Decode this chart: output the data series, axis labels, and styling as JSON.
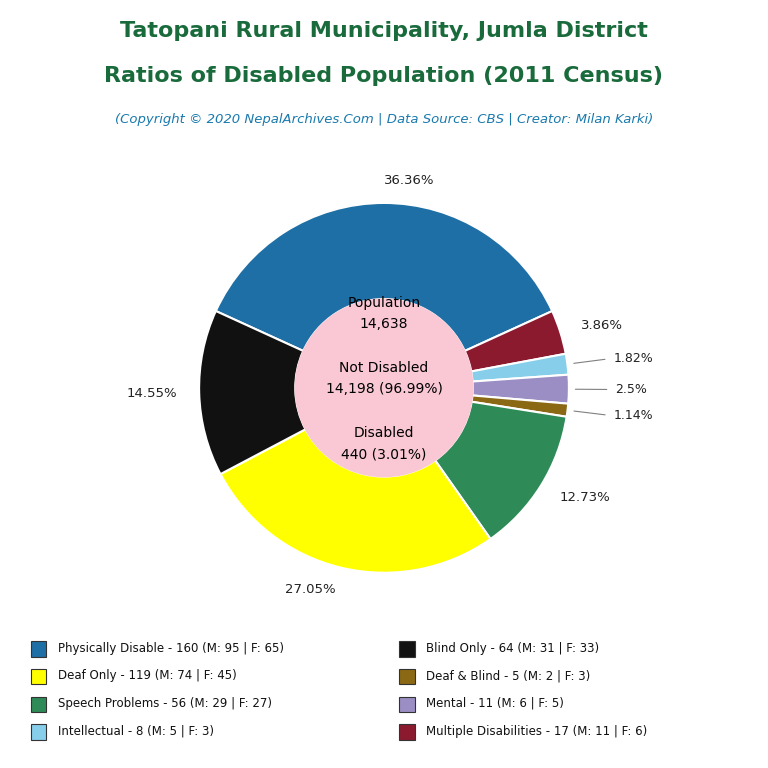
{
  "title_line1": "Tatopani Rural Municipality, Jumla District",
  "title_line2": "Ratios of Disabled Population (2011 Census)",
  "subtitle": "(Copyright © 2020 NepalArchives.Com | Data Source: CBS | Creator: Milan Karki)",
  "title_color": "#1a6b3c",
  "subtitle_color": "#1a7aad",
  "total_population": 14638,
  "not_disabled": 14198,
  "not_disabled_pct": 96.99,
  "disabled": 440,
  "disabled_pct": 3.01,
  "center_text_color": "#000000",
  "center_bg_color": "#f9c8d4",
  "slices": [
    {
      "label": "Physically Disable - 160 (M: 95 | F: 65)",
      "value": 160,
      "pct": 36.36,
      "color": "#1e6fa5"
    },
    {
      "label": "Deaf Only - 119 (M: 74 | F: 45)",
      "value": 119,
      "pct": 27.05,
      "color": "#ffff00"
    },
    {
      "label": "Speech Problems - 56 (M: 29 | F: 27)",
      "value": 56,
      "pct": 12.73,
      "color": "#2e8b57"
    },
    {
      "label": "Deaf & Blind - 5 (M: 2 | F: 3)",
      "value": 5,
      "pct": 1.14,
      "color": "#8b6914"
    },
    {
      "label": "Mental - 11 (M: 6 | F: 5)",
      "value": 11,
      "pct": 2.5,
      "color": "#9b8ec4"
    },
    {
      "label": "Intellectual - 8 (M: 5 | F: 3)",
      "value": 8,
      "pct": 1.82,
      "color": "#87ceeb"
    },
    {
      "label": "Multiple Disabilities - 17 (M: 11 | F: 6)",
      "value": 17,
      "pct": 3.86,
      "color": "#8b1a2f"
    },
    {
      "label": "Blind Only - 64 (M: 31 | F: 33)",
      "value": 64,
      "pct": 14.55,
      "color": "#111111"
    }
  ],
  "background_color": "#ffffff",
  "start_angle": 108.0
}
